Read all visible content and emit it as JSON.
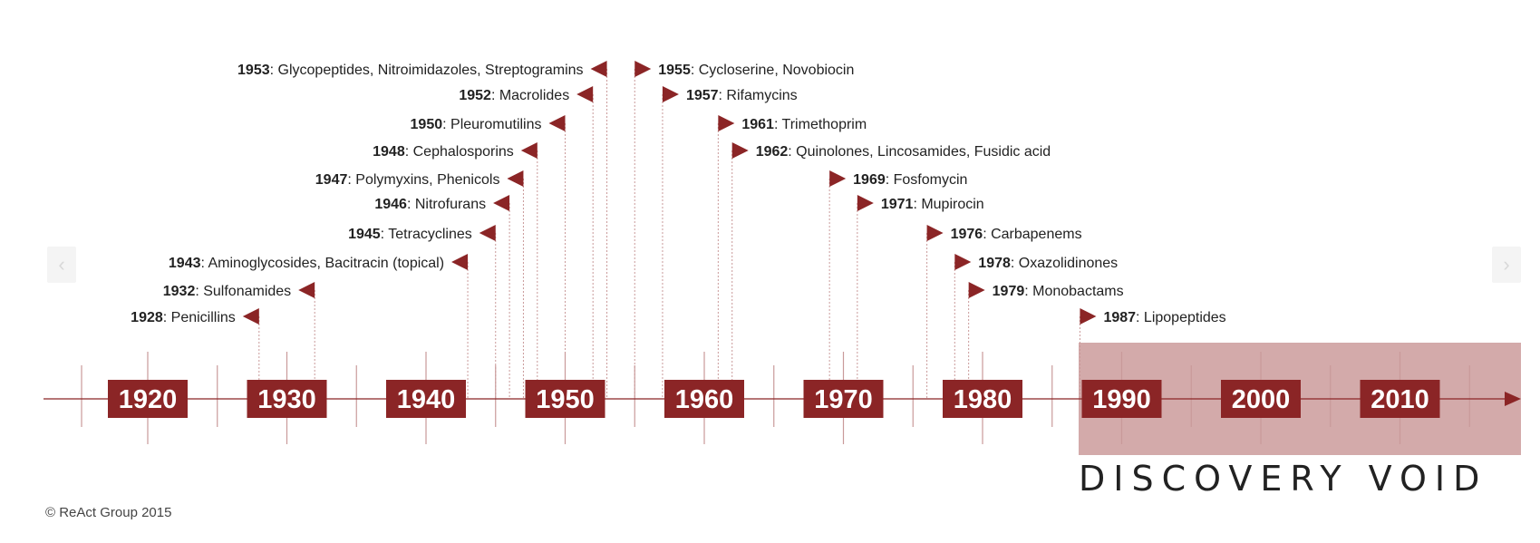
{
  "colors": {
    "accent": "#8b2526",
    "void_band": "#d3aaaa",
    "tick": "#c99a9a",
    "text": "#222222"
  },
  "navigation": {
    "prev_icon": "chevron-left-icon",
    "next_icon": "chevron-right-icon",
    "prev_glyph": "‹",
    "next_glyph": "›"
  },
  "decades": [
    "1920",
    "1930",
    "1940",
    "1950",
    "1960",
    "1970",
    "1980",
    "1990",
    "2000",
    "2010"
  ],
  "events_left": [
    {
      "year": "1953",
      "label": "Glycopeptides, Nitroimidazoles, Streptogramins"
    },
    {
      "year": "1952",
      "label": "Macrolides"
    },
    {
      "year": "1950",
      "label": "Pleuromutilins"
    },
    {
      "year": "1948",
      "label": "Cephalosporins"
    },
    {
      "year": "1947",
      "label": "Polymyxins, Phenicols"
    },
    {
      "year": "1946",
      "label": "Nitrofurans"
    },
    {
      "year": "1945",
      "label": "Tetracyclines"
    },
    {
      "year": "1943",
      "label": "Aminoglycosides, Bacitracin (topical)"
    },
    {
      "year": "1932",
      "label": "Sulfonamides"
    },
    {
      "year": "1928",
      "label": "Penicillins"
    }
  ],
  "events_right": [
    {
      "year": "1955",
      "label": "Cycloserine, Novobiocin"
    },
    {
      "year": "1957",
      "label": "Rifamycins"
    },
    {
      "year": "1961",
      "label": "Trimethoprim"
    },
    {
      "year": "1962",
      "label": "Quinolones, Lincosamides, Fusidic acid"
    },
    {
      "year": "1969",
      "label": "Fosfomycin"
    },
    {
      "year": "1971",
      "label": "Mupirocin"
    },
    {
      "year": "1976",
      "label": "Carbapenems"
    },
    {
      "year": "1978",
      "label": "Oxazolidinones"
    },
    {
      "year": "1979",
      "label": "Monobactams"
    },
    {
      "year": "1987",
      "label": "Lipopeptides"
    }
  ],
  "void_label": "DISCOVERY VOID",
  "copyright": "© ReAct Group 2015"
}
